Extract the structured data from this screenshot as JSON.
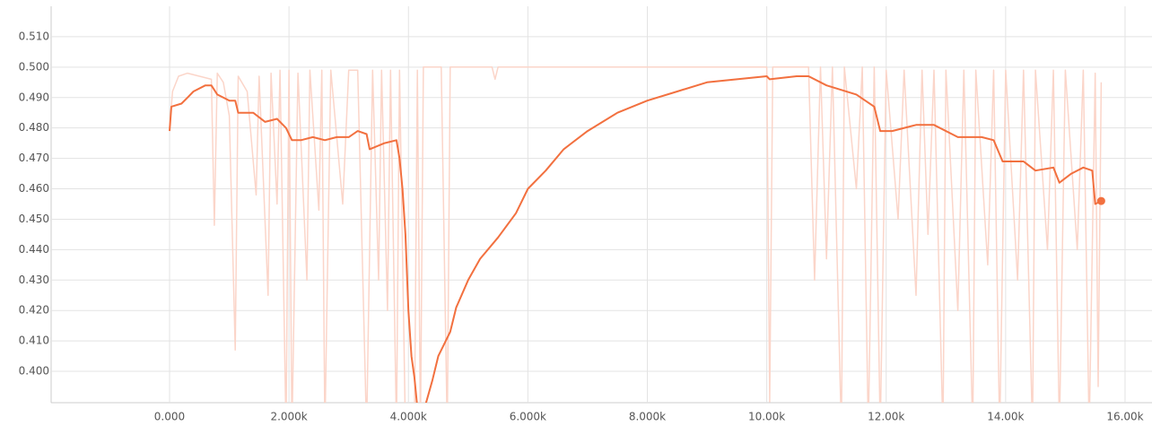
{
  "chart_data": {
    "type": "line",
    "xlim": [
      -1983,
      16451
    ],
    "ylim": [
      0.3897,
      0.52
    ],
    "xticks": [
      {
        "value": 0,
        "label": "0.000"
      },
      {
        "value": 2000,
        "label": "2.000k"
      },
      {
        "value": 4000,
        "label": "4.000k"
      },
      {
        "value": 6000,
        "label": "6.000k"
      },
      {
        "value": 8000,
        "label": "8.000k"
      },
      {
        "value": 10000,
        "label": "10.00k"
      },
      {
        "value": 12000,
        "label": "12.00k"
      },
      {
        "value": 14000,
        "label": "14.00k"
      },
      {
        "value": 16000,
        "label": "16.00k"
      }
    ],
    "yticks": [
      {
        "value": 0.4,
        "label": "0.400"
      },
      {
        "value": 0.41,
        "label": "0.410"
      },
      {
        "value": 0.42,
        "label": "0.420"
      },
      {
        "value": 0.43,
        "label": "0.430"
      },
      {
        "value": 0.44,
        "label": "0.440"
      },
      {
        "value": 0.45,
        "label": "0.450"
      },
      {
        "value": 0.46,
        "label": "0.460"
      },
      {
        "value": 0.47,
        "label": "0.470"
      },
      {
        "value": 0.48,
        "label": "0.480"
      },
      {
        "value": 0.49,
        "label": "0.490"
      },
      {
        "value": 0.5,
        "label": "0.500"
      },
      {
        "value": 0.51,
        "label": "0.510"
      }
    ],
    "grid": true,
    "series": [
      {
        "color": "#fbd5c9",
        "x": [
          0,
          50,
          150,
          300,
          500,
          700,
          750,
          800,
          900,
          1000,
          1100,
          1150,
          1300,
          1450,
          1500,
          1650,
          1700,
          1800,
          1850,
          1950,
          2000,
          2050,
          2150,
          2300,
          2350,
          2500,
          2550,
          2600,
          2700,
          2900,
          3000,
          3150,
          3300,
          3400,
          3500,
          3550,
          3650,
          3700,
          3800,
          3850,
          3950,
          4100,
          4150,
          4200,
          4250,
          4400,
          4550,
          4650,
          4700,
          5400,
          5450,
          5500,
          10000,
          10050,
          10100,
          10700,
          10800,
          10900,
          11000,
          11100,
          11250,
          11300,
          11500,
          11600,
          11700,
          11800,
          11900,
          12000,
          12200,
          12300,
          12500,
          12600,
          12700,
          12800,
          12950,
          13000,
          13200,
          13300,
          13450,
          13500,
          13700,
          13800,
          13900,
          14000,
          14200,
          14300,
          14450,
          14500,
          14700,
          14800,
          14900,
          15000,
          15200,
          15300,
          15400,
          15500,
          15550,
          15600
        ],
        "values": [
          0.48,
          0.492,
          0.497,
          0.498,
          0.497,
          0.496,
          0.448,
          0.498,
          0.495,
          0.484,
          0.407,
          0.497,
          0.492,
          0.458,
          0.497,
          0.425,
          0.498,
          0.455,
          0.499,
          0.38,
          0.499,
          0.38,
          0.498,
          0.43,
          0.499,
          0.453,
          0.499,
          0.38,
          0.499,
          0.455,
          0.499,
          0.499,
          0.38,
          0.499,
          0.43,
          0.499,
          0.42,
          0.499,
          0.38,
          0.499,
          0.38,
          0.38,
          0.499,
          0.38,
          0.5,
          0.5,
          0.5,
          0.38,
          0.5,
          0.5,
          0.496,
          0.5,
          0.5,
          0.39,
          0.5,
          0.5,
          0.43,
          0.5,
          0.437,
          0.5,
          0.38,
          0.5,
          0.46,
          0.5,
          0.38,
          0.5,
          0.38,
          0.499,
          0.45,
          0.499,
          0.425,
          0.499,
          0.445,
          0.499,
          0.38,
          0.499,
          0.42,
          0.499,
          0.38,
          0.499,
          0.435,
          0.499,
          0.38,
          0.499,
          0.43,
          0.499,
          0.38,
          0.499,
          0.44,
          0.499,
          0.38,
          0.499,
          0.44,
          0.499,
          0.38,
          0.498,
          0.395,
          0.495
        ]
      },
      {
        "color": "#f2703f",
        "x": [
          0,
          30,
          200,
          300,
          400,
          600,
          700,
          800,
          1000,
          1100,
          1150,
          1400,
          1600,
          1800,
          1950,
          2050,
          2200,
          2400,
          2600,
          2800,
          3000,
          3150,
          3300,
          3350,
          3600,
          3800,
          3850,
          3900,
          3950,
          4000,
          4050,
          4100,
          4150,
          4200,
          4300,
          4400,
          4500,
          4700,
          4800,
          5000,
          5200,
          5500,
          5800,
          6000,
          6300,
          6600,
          7000,
          7500,
          8000,
          8500,
          9000,
          9500,
          10000,
          10050,
          10500,
          10700,
          11000,
          11500,
          11800,
          11900,
          12100,
          12500,
          12800,
          13200,
          13600,
          13800,
          13950,
          14300,
          14500,
          14800,
          14900,
          15100,
          15300,
          15450,
          15500,
          15600
        ],
        "values": [
          0.479,
          0.487,
          0.488,
          0.49,
          0.492,
          0.494,
          0.494,
          0.491,
          0.489,
          0.489,
          0.485,
          0.485,
          0.482,
          0.483,
          0.48,
          0.476,
          0.476,
          0.477,
          0.476,
          0.477,
          0.477,
          0.479,
          0.478,
          0.473,
          0.475,
          0.476,
          0.47,
          0.46,
          0.445,
          0.42,
          0.405,
          0.398,
          0.388,
          0.385,
          0.39,
          0.397,
          0.405,
          0.413,
          0.421,
          0.43,
          0.437,
          0.444,
          0.452,
          0.46,
          0.466,
          0.473,
          0.479,
          0.485,
          0.489,
          0.492,
          0.495,
          0.496,
          0.497,
          0.496,
          0.497,
          0.497,
          0.494,
          0.491,
          0.487,
          0.479,
          0.479,
          0.481,
          0.481,
          0.477,
          0.477,
          0.476,
          0.469,
          0.469,
          0.466,
          0.467,
          0.462,
          0.465,
          0.467,
          0.466,
          0.455,
          0.456
        ]
      }
    ]
  }
}
